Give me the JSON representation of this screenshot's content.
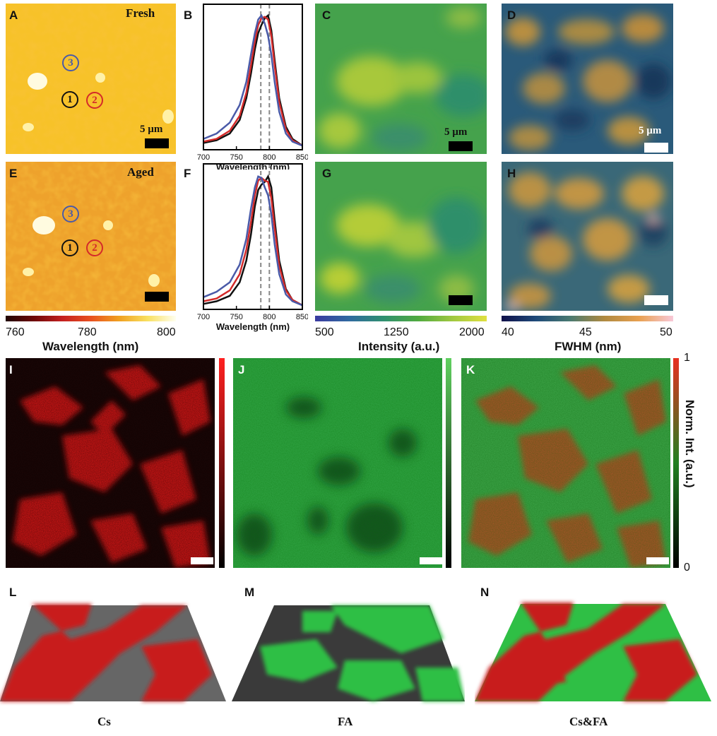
{
  "panels": {
    "A": "A",
    "B": "B",
    "C": "C",
    "D": "D",
    "E": "E",
    "F": "F",
    "G": "G",
    "H": "H",
    "I": "I",
    "J": "J",
    "K": "K",
    "L": "L",
    "M": "M",
    "N": "N"
  },
  "labels": {
    "fresh": "Fresh",
    "aged": "Aged",
    "scale_text": "5 µm",
    "spot1": "1",
    "spot2": "2",
    "spot3": "3"
  },
  "colorbars": {
    "wavelength": {
      "ticks": [
        "760",
        "780",
        "800"
      ],
      "title": "Wavelength (nm)"
    },
    "intensity": {
      "ticks": [
        "500",
        "1250",
        "2000"
      ],
      "title": "Intensity (a.u.)"
    },
    "fwhm": {
      "ticks": [
        "40",
        "45",
        "50"
      ],
      "title": "FWHM (nm)"
    },
    "norm": {
      "top": "1",
      "bottom": "0",
      "title": "Norm. Int. (a.u.)"
    }
  },
  "captions": {
    "cs": "Cs",
    "fa": "FA",
    "csfa": "Cs&FA"
  },
  "colors": {
    "spot1": "#111111",
    "spot2": "#d42a2a",
    "spot3": "#4a5aa8"
  },
  "chart_data": [
    {
      "panel": "B",
      "type": "line",
      "xlabel": "Wavelength (nm)",
      "xticks": [
        "700",
        "750",
        "800",
        "850"
      ],
      "xlim": [
        700,
        850
      ],
      "vlines": [
        787,
        800
      ],
      "series": [
        {
          "color": "#111111",
          "x": [
            700,
            720,
            740,
            755,
            765,
            772,
            778,
            783,
            788,
            793,
            798,
            803,
            808,
            815,
            825,
            835,
            850
          ],
          "y": [
            0.05,
            0.07,
            0.12,
            0.22,
            0.38,
            0.56,
            0.74,
            0.86,
            0.92,
            0.97,
            0.99,
            0.88,
            0.66,
            0.38,
            0.17,
            0.08,
            0.03
          ]
        },
        {
          "color": "#d42a2a",
          "x": [
            700,
            720,
            740,
            755,
            765,
            772,
            778,
            783,
            788,
            793,
            798,
            803,
            808,
            815,
            825,
            835,
            850
          ],
          "y": [
            0.06,
            0.08,
            0.14,
            0.25,
            0.42,
            0.62,
            0.8,
            0.92,
            0.97,
            0.98,
            0.96,
            0.84,
            0.62,
            0.35,
            0.15,
            0.07,
            0.03
          ]
        },
        {
          "color": "#4a5aa8",
          "x": [
            700,
            720,
            740,
            755,
            765,
            772,
            778,
            783,
            788,
            793,
            798,
            803,
            808,
            815,
            825,
            835,
            850
          ],
          "y": [
            0.08,
            0.12,
            0.2,
            0.33,
            0.5,
            0.7,
            0.86,
            0.96,
            0.99,
            0.93,
            0.84,
            0.7,
            0.5,
            0.28,
            0.12,
            0.06,
            0.03
          ]
        }
      ]
    },
    {
      "panel": "F",
      "type": "line",
      "xlabel": "Wavelength (nm)",
      "xticks": [
        "700",
        "750",
        "800",
        "850"
      ],
      "xlim": [
        700,
        850
      ],
      "vlines": [
        787,
        800
      ],
      "series": [
        {
          "color": "#111111",
          "x": [
            700,
            720,
            740,
            755,
            765,
            772,
            778,
            783,
            788,
            793,
            798,
            803,
            808,
            815,
            825,
            835,
            850
          ],
          "y": [
            0.04,
            0.06,
            0.1,
            0.2,
            0.36,
            0.55,
            0.76,
            0.88,
            0.92,
            0.94,
            0.98,
            0.9,
            0.66,
            0.36,
            0.15,
            0.07,
            0.03
          ]
        },
        {
          "color": "#d42a2a",
          "x": [
            700,
            720,
            740,
            755,
            765,
            772,
            778,
            783,
            788,
            793,
            798,
            803,
            808,
            815,
            825,
            835,
            850
          ],
          "y": [
            0.06,
            0.08,
            0.14,
            0.26,
            0.44,
            0.64,
            0.84,
            0.95,
            0.97,
            0.95,
            0.94,
            0.82,
            0.6,
            0.32,
            0.14,
            0.07,
            0.03
          ]
        },
        {
          "color": "#4a5aa8",
          "x": [
            700,
            720,
            740,
            755,
            765,
            772,
            778,
            783,
            788,
            793,
            798,
            803,
            808,
            815,
            825,
            835,
            850
          ],
          "y": [
            0.09,
            0.13,
            0.2,
            0.33,
            0.52,
            0.74,
            0.9,
            0.98,
            0.97,
            0.9,
            0.84,
            0.7,
            0.48,
            0.26,
            0.11,
            0.06,
            0.03
          ]
        }
      ]
    }
  ]
}
